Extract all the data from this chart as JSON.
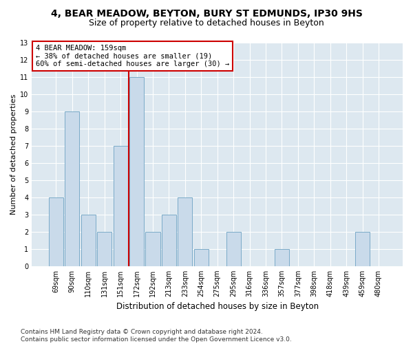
{
  "title1": "4, BEAR MEADOW, BEYTON, BURY ST EDMUNDS, IP30 9HS",
  "title2": "Size of property relative to detached houses in Beyton",
  "xlabel": "Distribution of detached houses by size in Beyton",
  "ylabel": "Number of detached properties",
  "categories": [
    "69sqm",
    "90sqm",
    "110sqm",
    "131sqm",
    "151sqm",
    "172sqm",
    "192sqm",
    "213sqm",
    "233sqm",
    "254sqm",
    "275sqm",
    "295sqm",
    "316sqm",
    "336sqm",
    "357sqm",
    "377sqm",
    "398sqm",
    "418sqm",
    "439sqm",
    "459sqm",
    "480sqm"
  ],
  "values": [
    4,
    9,
    3,
    2,
    7,
    11,
    2,
    3,
    4,
    1,
    0,
    2,
    0,
    0,
    1,
    0,
    0,
    0,
    0,
    2,
    0
  ],
  "bar_color": "#c9daea",
  "bar_edge_color": "#7aaac8",
  "subject_line_index": 4,
  "subject_line_color": "#cc0000",
  "annotation_text": "4 BEAR MEADOW: 159sqm\n← 38% of detached houses are smaller (19)\n60% of semi-detached houses are larger (30) →",
  "annotation_box_color": "#cc0000",
  "ylim": [
    0,
    13
  ],
  "yticks": [
    0,
    1,
    2,
    3,
    4,
    5,
    6,
    7,
    8,
    9,
    10,
    11,
    12,
    13
  ],
  "footnote": "Contains HM Land Registry data © Crown copyright and database right 2024.\nContains public sector information licensed under the Open Government Licence v3.0.",
  "bg_color": "#ffffff",
  "plot_bg_color": "#dde8f0",
  "grid_color": "#ffffff",
  "title1_fontsize": 10,
  "title2_fontsize": 9,
  "xlabel_fontsize": 8.5,
  "ylabel_fontsize": 8,
  "tick_fontsize": 7,
  "footnote_fontsize": 6.5,
  "annotation_fontsize": 7.5
}
